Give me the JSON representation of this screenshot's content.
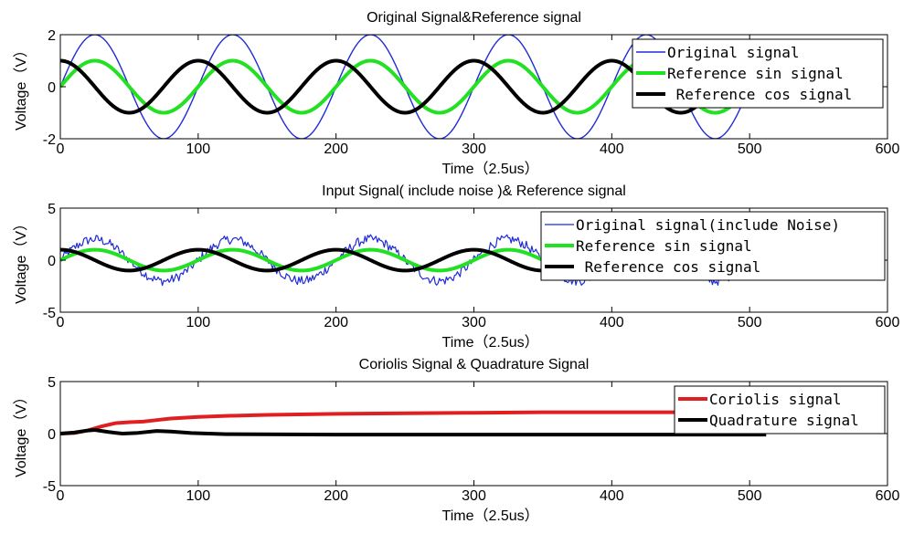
{
  "chart_data": [
    {
      "type": "line",
      "title": "Original Signal&Reference signal",
      "xlabel": "Time（2.5us）",
      "ylabel": "Voltage（V）",
      "xlim": [
        0,
        600
      ],
      "ylim": [
        -2,
        2
      ],
      "xticks": [
        0,
        100,
        200,
        300,
        400,
        500,
        600
      ],
      "yticks": [
        -2,
        0,
        2
      ],
      "legend_location": "top-right",
      "series": [
        {
          "name": "Original signal",
          "color": "#1f2bd6",
          "kind": "sin",
          "amplitude": 2,
          "period": 100,
          "x_end": 500,
          "noise": 0,
          "width": 1.4
        },
        {
          "name": "Reference sin signal",
          "color": "#22e022",
          "kind": "sin",
          "amplitude": 1,
          "period": 100,
          "x_end": 500,
          "noise": 0,
          "width": 4
        },
        {
          "name": " Reference cos signal",
          "color": "#000000",
          "kind": "cos",
          "amplitude": 1,
          "period": 100,
          "x_end": 500,
          "noise": 0,
          "width": 4
        }
      ]
    },
    {
      "type": "line",
      "title": "Input Signal( include noise )& Reference signal",
      "xlabel": "Time（2.5us）",
      "ylabel": "Voltage（V）",
      "xlim": [
        0,
        600
      ],
      "ylim": [
        -5,
        5
      ],
      "xticks": [
        0,
        100,
        200,
        300,
        400,
        500,
        600
      ],
      "yticks": [
        -5,
        0,
        5
      ],
      "legend_location": "top-right",
      "series": [
        {
          "name": "Original signal(include Noise)",
          "color": "#1f2bd6",
          "kind": "sin",
          "amplitude": 2,
          "period": 100,
          "x_end": 485,
          "noise": 0.45,
          "width": 1.2
        },
        {
          "name": "Reference sin signal",
          "color": "#22e022",
          "kind": "sin",
          "amplitude": 1,
          "period": 100,
          "x_end": 500,
          "noise": 0,
          "width": 4
        },
        {
          "name": " Reference cos signal",
          "color": "#000000",
          "kind": "cos",
          "amplitude": 1,
          "period": 100,
          "x_end": 500,
          "noise": 0,
          "width": 4
        }
      ]
    },
    {
      "type": "line",
      "title": "Coriolis Signal & Quadrature Signal",
      "xlabel": "Time（2.5us）",
      "ylabel": "Voltage（V）",
      "xlim": [
        0,
        600
      ],
      "ylim": [
        -5,
        5
      ],
      "xticks": [
        0,
        100,
        200,
        300,
        400,
        500,
        600
      ],
      "yticks": [
        -5,
        0,
        5
      ],
      "legend_location": "top-right",
      "series": [
        {
          "name": "Coriolis signal",
          "color": "#e02020",
          "width": 4,
          "points": [
            [
              0,
              0
            ],
            [
              10,
              0.05
            ],
            [
              20,
              0.3
            ],
            [
              30,
              0.7
            ],
            [
              40,
              1.0
            ],
            [
              50,
              1.1
            ],
            [
              60,
              1.15
            ],
            [
              70,
              1.3
            ],
            [
              80,
              1.45
            ],
            [
              100,
              1.6
            ],
            [
              120,
              1.7
            ],
            [
              150,
              1.8
            ],
            [
              200,
              1.9
            ],
            [
              250,
              1.95
            ],
            [
              300,
              2.0
            ],
            [
              350,
              2.05
            ],
            [
              400,
              2.05
            ],
            [
              450,
              2.05
            ],
            [
              460,
              2.05
            ]
          ]
        },
        {
          "name": "Quadrature signal",
          "color": "#000000",
          "width": 4,
          "points": [
            [
              0,
              0
            ],
            [
              10,
              0.1
            ],
            [
              20,
              0.3
            ],
            [
              25,
              0.35
            ],
            [
              35,
              0.15
            ],
            [
              45,
              0.0
            ],
            [
              55,
              0.05
            ],
            [
              70,
              0.25
            ],
            [
              80,
              0.2
            ],
            [
              95,
              0.05
            ],
            [
              120,
              -0.05
            ],
            [
              200,
              -0.1
            ],
            [
              300,
              -0.1
            ],
            [
              400,
              -0.1
            ],
            [
              500,
              -0.1
            ],
            [
              512,
              -0.1
            ]
          ]
        }
      ]
    }
  ]
}
